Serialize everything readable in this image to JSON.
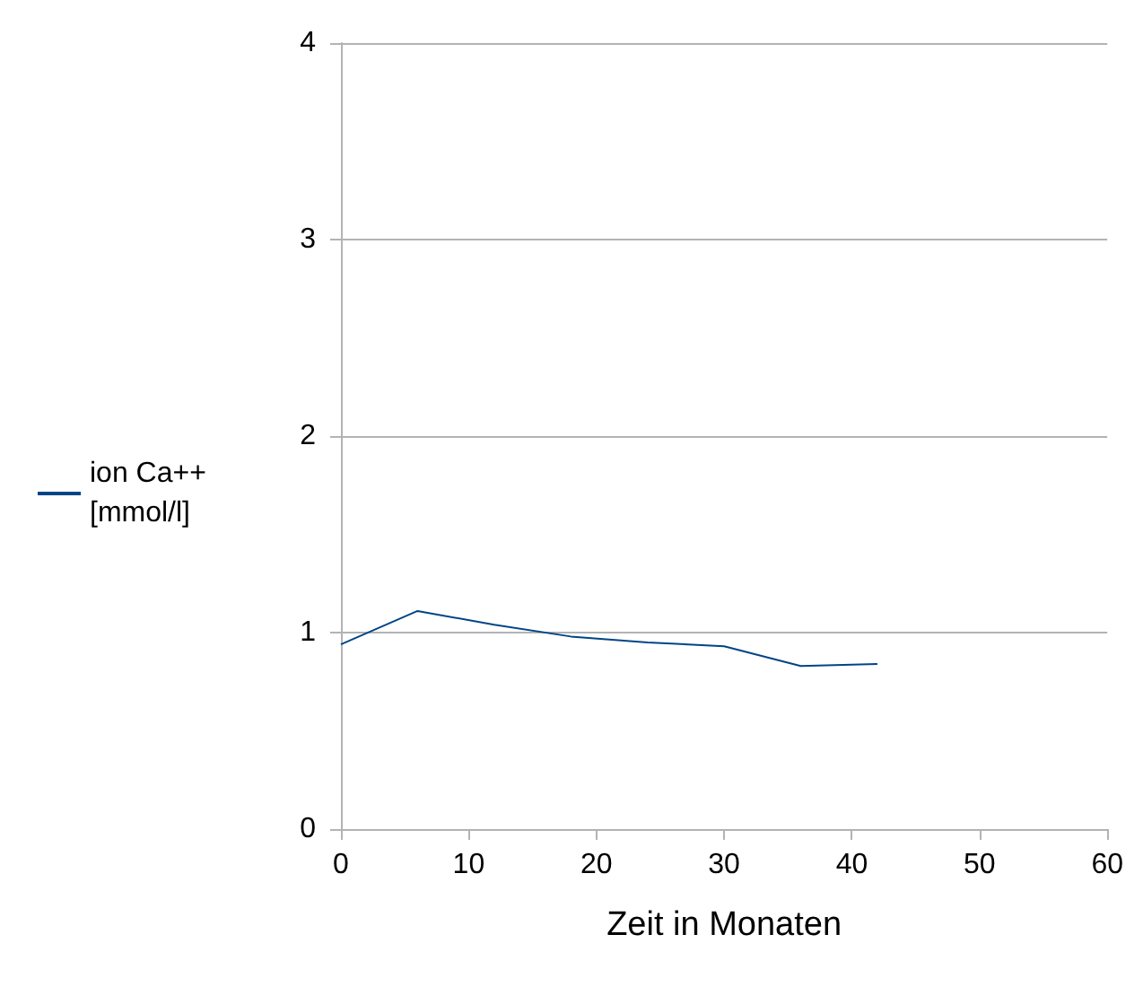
{
  "chart_data": {
    "type": "line",
    "xlabel": "Zeit in Monaten",
    "x": [
      0,
      6,
      12,
      18,
      24,
      30,
      36,
      42
    ],
    "series": [
      {
        "name": "ion Ca++ [mmol/l]",
        "color": "#004586",
        "values": [
          0.94,
          1.11,
          1.04,
          0.98,
          0.95,
          0.93,
          0.83,
          0.84
        ]
      }
    ],
    "xlim": [
      0,
      60
    ],
    "xticks": [
      0,
      10,
      20,
      30,
      40,
      50,
      60
    ],
    "ylim": [
      0,
      4
    ],
    "yticks": [
      0,
      1,
      2,
      3,
      4
    ],
    "grid": "y",
    "legend": "left",
    "marker": "none",
    "line_style": "solid"
  }
}
